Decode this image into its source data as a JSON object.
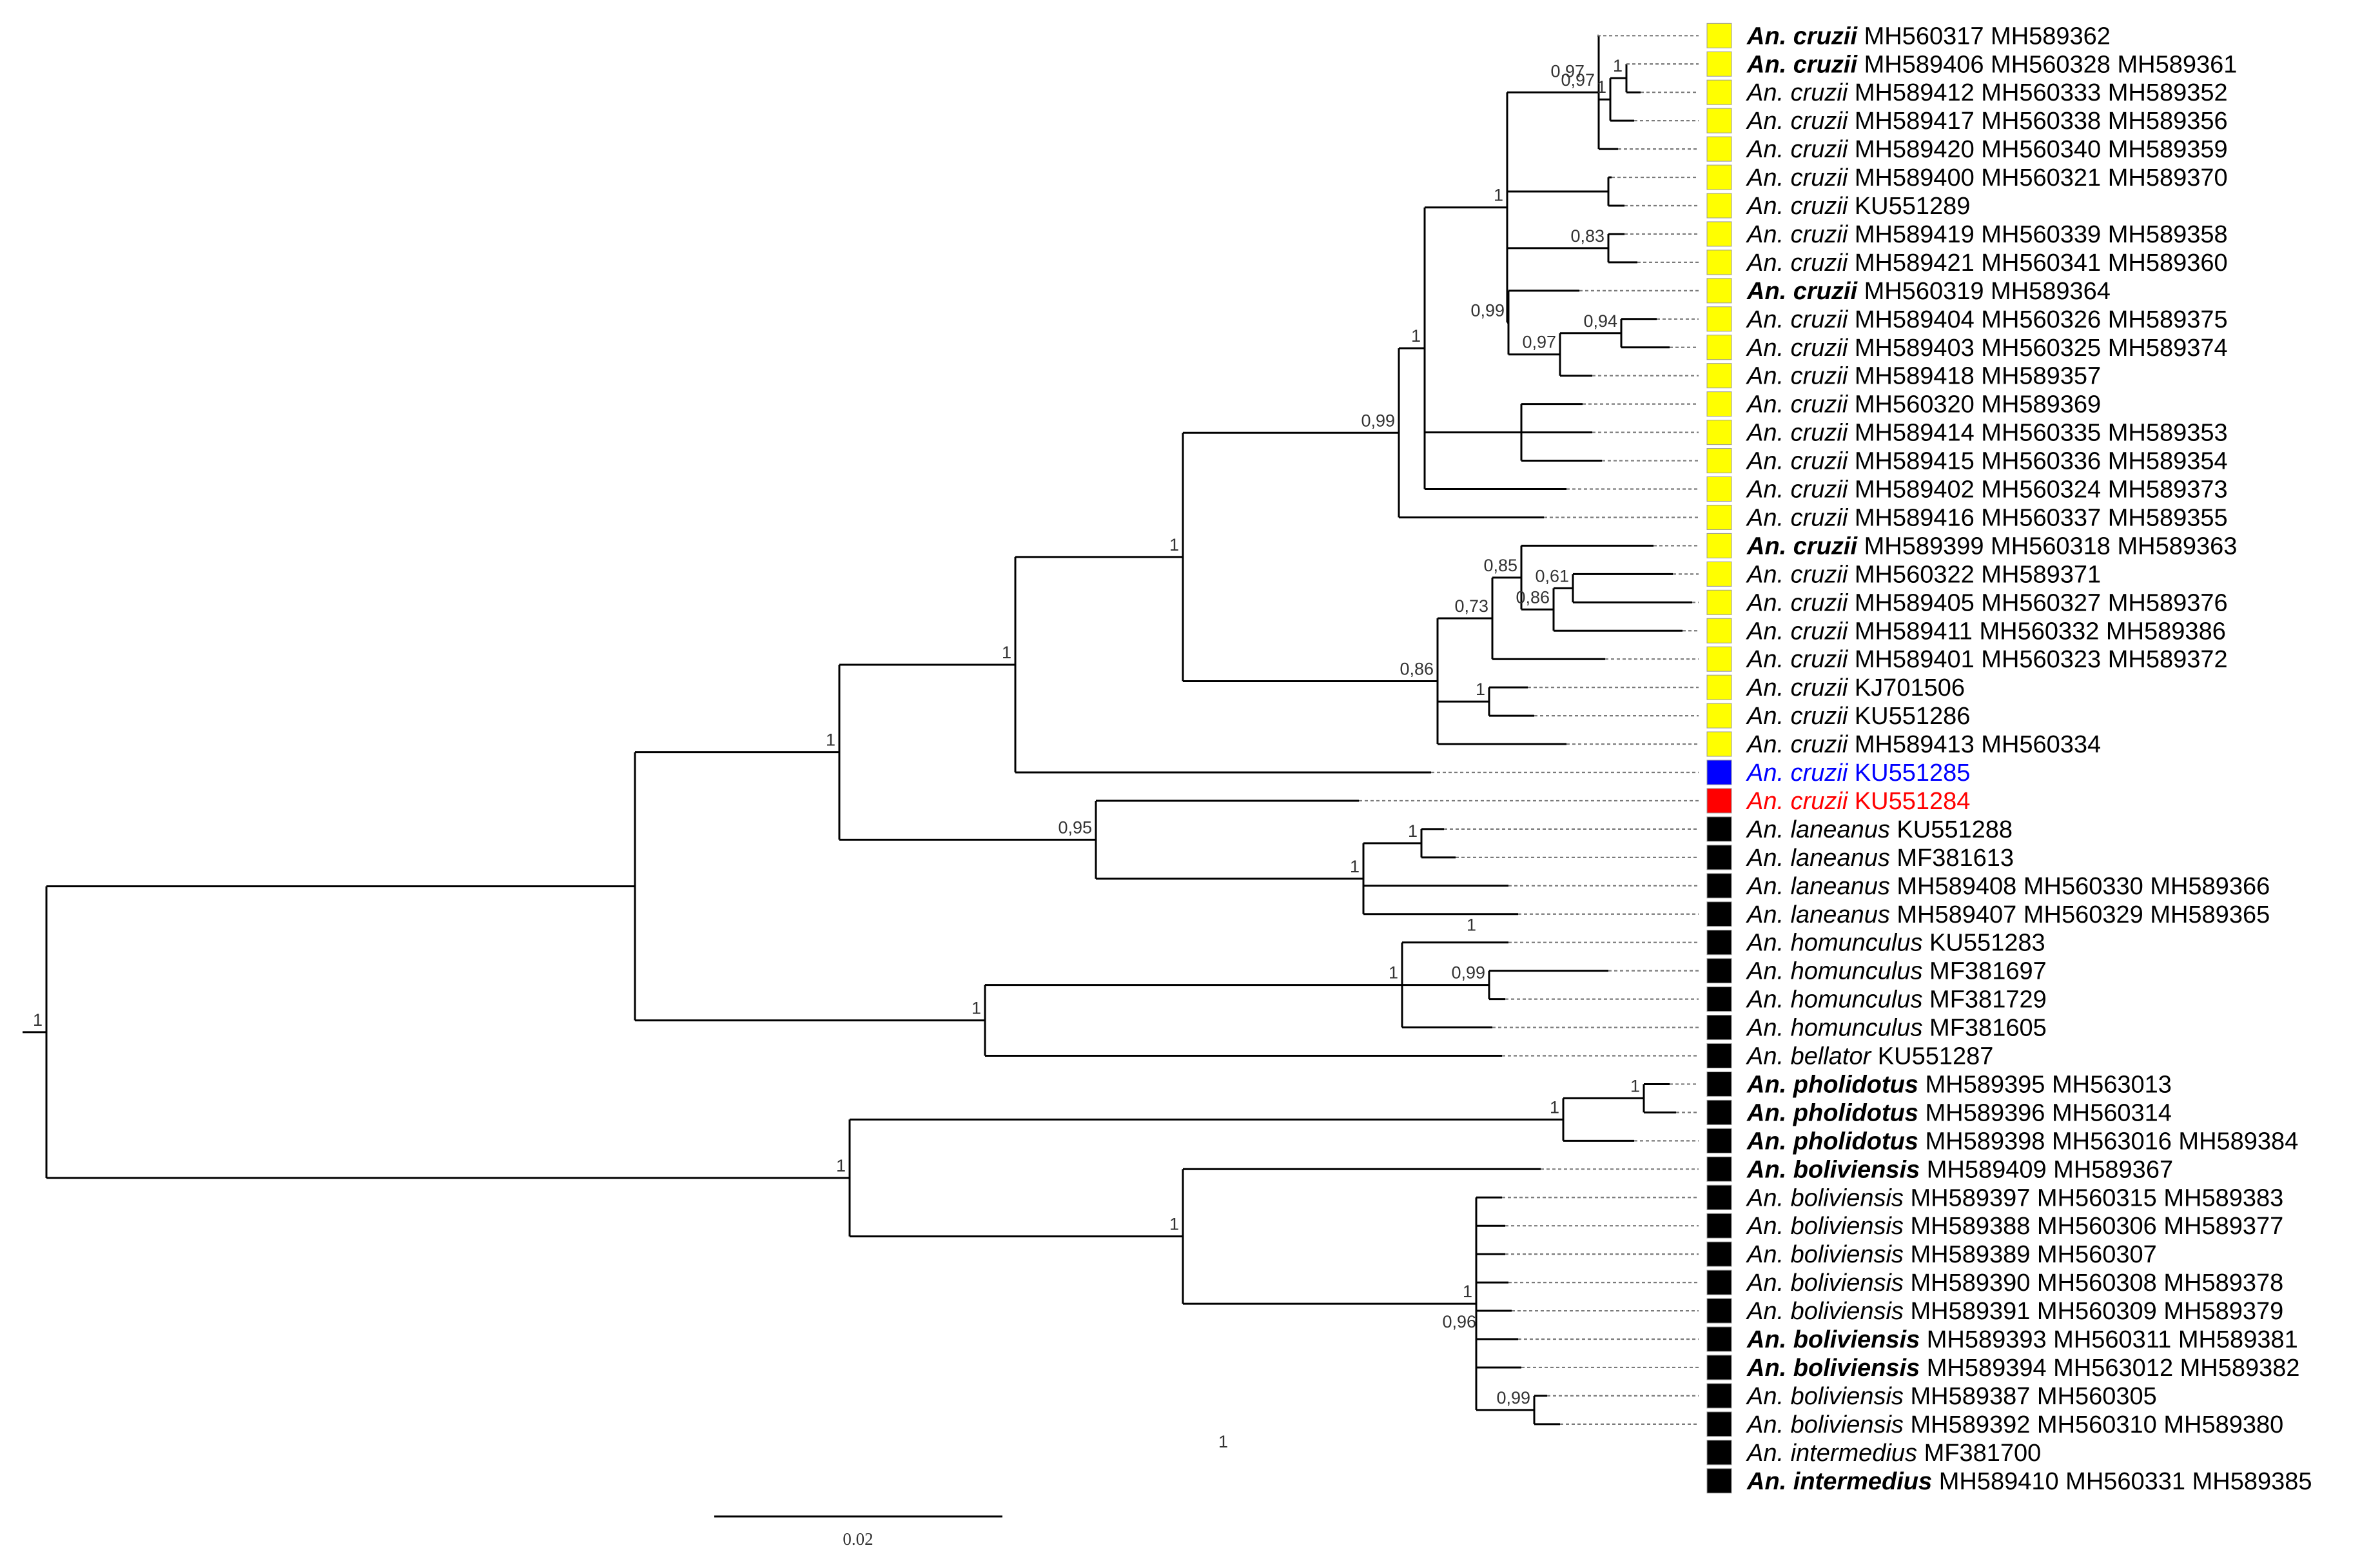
{
  "colors": {
    "yellow": "#ffff00",
    "blue": "#0000ff",
    "red": "#ff0000",
    "black": "#000000"
  },
  "scale_bar_label": "0.02",
  "taxa": [
    {
      "species": "An. cruzii",
      "accessions": "MH560317 MH589362",
      "color": "yellow",
      "bold": true
    },
    {
      "species": "An. cruzii",
      "accessions": "MH589406 MH560328 MH589361",
      "color": "yellow",
      "bold": true
    },
    {
      "species": "An. cruzii",
      "accessions": "MH589412 MH560333 MH589352",
      "color": "yellow",
      "bold": false
    },
    {
      "species": "An. cruzii",
      "accessions": "MH589417 MH560338 MH589356",
      "color": "yellow",
      "bold": false
    },
    {
      "species": "An. cruzii",
      "accessions": "MH589420 MH560340 MH589359",
      "color": "yellow",
      "bold": false
    },
    {
      "species": "An. cruzii",
      "accessions": "MH589400 MH560321 MH589370",
      "color": "yellow",
      "bold": false
    },
    {
      "species": "An. cruzii",
      "accessions": "KU551289",
      "color": "yellow",
      "bold": false
    },
    {
      "species": "An. cruzii",
      "accessions": "MH589419 MH560339 MH589358",
      "color": "yellow",
      "bold": false
    },
    {
      "species": "An. cruzii",
      "accessions": "MH589421 MH560341 MH589360",
      "color": "yellow",
      "bold": false
    },
    {
      "species": "An. cruzii",
      "accessions": "MH560319 MH589364",
      "color": "yellow",
      "bold": true
    },
    {
      "species": "An. cruzii",
      "accessions": "MH589404 MH560326 MH589375",
      "color": "yellow",
      "bold": false
    },
    {
      "species": "An. cruzii",
      "accessions": "MH589403 MH560325 MH589374",
      "color": "yellow",
      "bold": false
    },
    {
      "species": "An. cruzii",
      "accessions": "MH589418 MH589357",
      "color": "yellow",
      "bold": false
    },
    {
      "species": "An. cruzii",
      "accessions": "MH560320 MH589369",
      "color": "yellow",
      "bold": false
    },
    {
      "species": "An. cruzii",
      "accessions": "MH589414 MH560335 MH589353",
      "color": "yellow",
      "bold": false
    },
    {
      "species": "An. cruzii",
      "accessions": "MH589415 MH560336 MH589354",
      "color": "yellow",
      "bold": false
    },
    {
      "species": "An. cruzii",
      "accessions": "MH589402 MH560324 MH589373",
      "color": "yellow",
      "bold": false
    },
    {
      "species": "An. cruzii",
      "accessions": "MH589416 MH560337 MH589355",
      "color": "yellow",
      "bold": false
    },
    {
      "species": "An. cruzii",
      "accessions": "MH589399 MH560318 MH589363",
      "color": "yellow",
      "bold": true
    },
    {
      "species": "An. cruzii",
      "accessions": "MH560322 MH589371",
      "color": "yellow",
      "bold": false
    },
    {
      "species": "An. cruzii",
      "accessions": "MH589405 MH560327 MH589376",
      "color": "yellow",
      "bold": false
    },
    {
      "species": "An. cruzii",
      "accessions": "MH589411 MH560332 MH589386",
      "color": "yellow",
      "bold": false
    },
    {
      "species": "An. cruzii",
      "accessions": "MH589401 MH560323 MH589372",
      "color": "yellow",
      "bold": false
    },
    {
      "species": "An. cruzii",
      "accessions": "KJ701506",
      "color": "yellow",
      "bold": false
    },
    {
      "species": "An. cruzii",
      "accessions": "KU551286",
      "color": "yellow",
      "bold": false
    },
    {
      "species": "An. cruzii",
      "accessions": "MH589413 MH560334",
      "color": "yellow",
      "bold": false
    },
    {
      "species": "An. cruzii",
      "accessions": "KU551285",
      "color": "blue",
      "bold": false
    },
    {
      "species": "An. cruzii",
      "accessions": "KU551284",
      "color": "red",
      "bold": false
    },
    {
      "species": "An. laneanus",
      "accessions": "KU551288",
      "color": "black",
      "bold": false
    },
    {
      "species": "An. laneanus",
      "accessions": "MF381613",
      "color": "black",
      "bold": false
    },
    {
      "species": "An. laneanus",
      "accessions": "MH589408 MH560330 MH589366",
      "color": "black",
      "bold": false
    },
    {
      "species": "An. laneanus",
      "accessions": "MH589407 MH560329 MH589365",
      "color": "black",
      "bold": false
    },
    {
      "species": "An. homunculus",
      "accessions": "KU551283",
      "color": "black",
      "bold": false
    },
    {
      "species": "An. homunculus",
      "accessions": "MF381697",
      "color": "black",
      "bold": false
    },
    {
      "species": "An. homunculus",
      "accessions": "MF381729",
      "color": "black",
      "bold": false
    },
    {
      "species": "An. homunculus",
      "accessions": "MF381605",
      "color": "black",
      "bold": false
    },
    {
      "species": "An. bellator",
      "accessions": "KU551287",
      "color": "black",
      "bold": false
    },
    {
      "species": "An. pholidotus",
      "accessions": "MH589395 MH563013",
      "color": "black",
      "bold": true
    },
    {
      "species": "An. pholidotus",
      "accessions": "MH589396 MH560314",
      "color": "black",
      "bold": true
    },
    {
      "species": "An. pholidotus",
      "accessions": "MH589398 MH563016 MH589384",
      "color": "black",
      "bold": true
    },
    {
      "species": "An. boliviensis",
      "accessions": "MH589409 MH589367",
      "color": "black",
      "bold": true
    },
    {
      "species": "An. boliviensis",
      "accessions": "MH589397 MH560315 MH589383",
      "color": "black",
      "bold": false
    },
    {
      "species": "An. boliviensis",
      "accessions": "MH589388 MH560306 MH589377",
      "color": "black",
      "bold": false
    },
    {
      "species": "An. boliviensis",
      "accessions": "MH589389 MH560307",
      "color": "black",
      "bold": false
    },
    {
      "species": "An. boliviensis",
      "accessions": "MH589390 MH560308 MH589378",
      "color": "black",
      "bold": false
    },
    {
      "species": "An. boliviensis",
      "accessions": "MH589391 MH560309 MH589379",
      "color": "black",
      "bold": false
    },
    {
      "species": "An. boliviensis",
      "accessions": "MH589393 MH560311 MH589381",
      "color": "black",
      "bold": true
    },
    {
      "species": "An. boliviensis",
      "accessions": "MH589394 MH563012 MH589382",
      "color": "black",
      "bold": true
    },
    {
      "species": "An. boliviensis",
      "accessions": "MH589387 MH560305",
      "color": "black",
      "bold": false
    },
    {
      "species": "An. boliviensis",
      "accessions": "MH589392 MH560310 MH589380",
      "color": "black",
      "bold": false
    },
    {
      "species": "An. intermedius",
      "accessions": "MF381700",
      "color": "black",
      "bold": false
    },
    {
      "species": "An. intermedius",
      "accessions": "MH589410 MH560331 MH589385",
      "color": "black",
      "bold": true
    }
  ],
  "support_values": [
    "1",
    "1",
    "1",
    "1",
    "0,95",
    "1",
    "1",
    "1",
    "1",
    "1",
    "0,99",
    "1",
    "0,97",
    "1",
    "0,97",
    "1",
    "0,83",
    "0,99",
    "0,97",
    "0,94",
    "0,86",
    "0,73",
    "0,85",
    "0,86",
    "0,61",
    "1",
    "1",
    "0,99",
    "1",
    "1",
    "1",
    "1",
    "1",
    "0,96",
    "0,99",
    "1"
  ]
}
